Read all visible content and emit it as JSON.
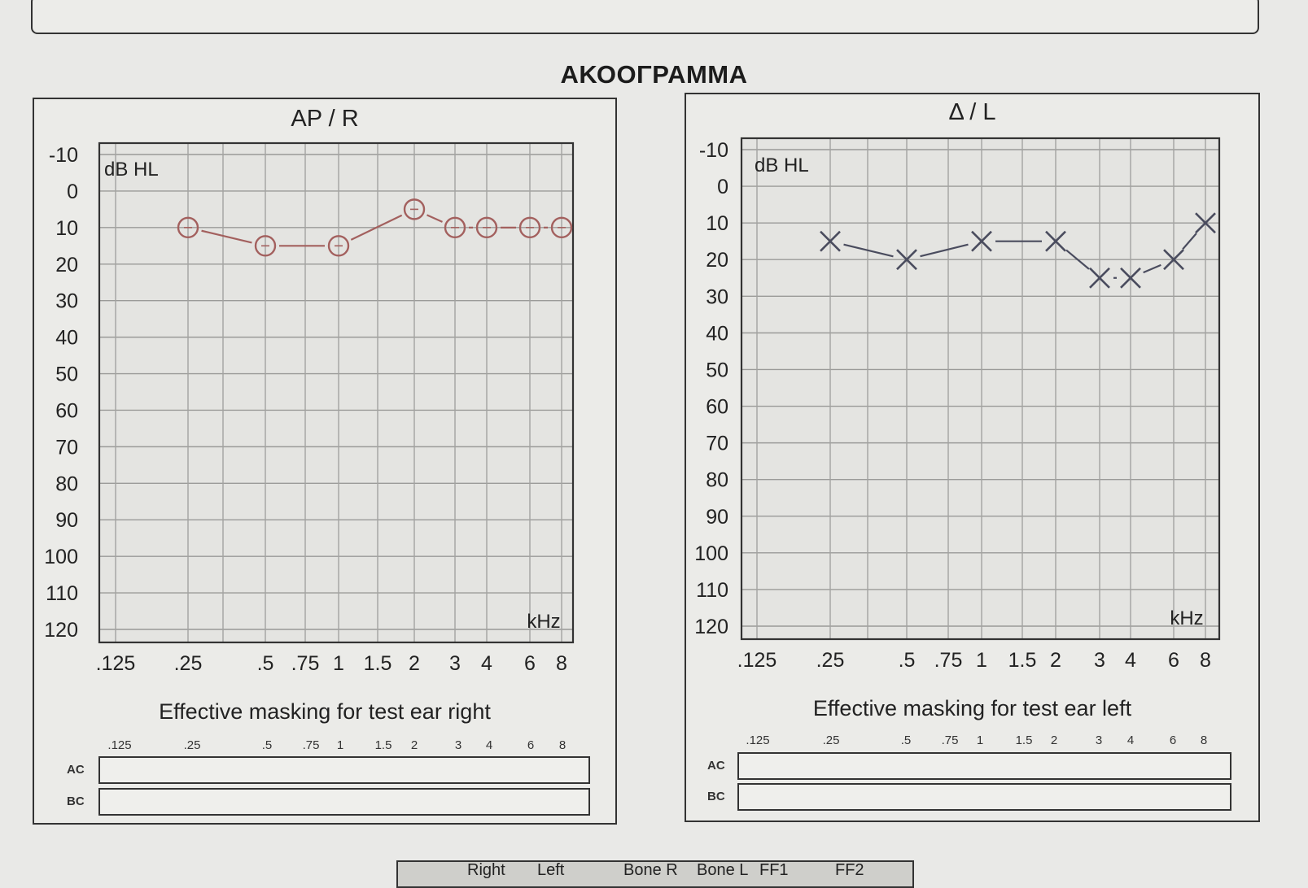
{
  "page_title": "ΑΚΟΟΓΡΑΜΜΑ",
  "chart_data": [
    {
      "type": "line",
      "title": "AP / R",
      "ylabel": "dB HL",
      "xlabel": "kHz",
      "x_ticks": [
        ".125",
        ".25",
        ".5",
        ".75",
        "1",
        "1.5",
        "2",
        "3",
        "4",
        "6",
        "8"
      ],
      "y_ticks": [
        "-10",
        "0",
        "10",
        "20",
        "30",
        "40",
        "50",
        "60",
        "70",
        "80",
        "90",
        "100",
        "110",
        "120"
      ],
      "ylim": [
        -10,
        120
      ],
      "y_inverted": true,
      "grid": true,
      "marker": "circle",
      "color": "#a3605e",
      "series": [
        {
          "x": [
            0.25,
            0.5,
            1,
            2,
            3,
            4,
            6,
            8
          ],
          "values": [
            10,
            15,
            15,
            5,
            10,
            10,
            10,
            10
          ]
        }
      ]
    },
    {
      "type": "line",
      "title": "Δ / L",
      "ylabel": "dB HL",
      "xlabel": "kHz",
      "x_ticks": [
        ".125",
        ".25",
        ".5",
        ".75",
        "1",
        "1.5",
        "2",
        "3",
        "4",
        "6",
        "8"
      ],
      "y_ticks": [
        "-10",
        "0",
        "10",
        "20",
        "30",
        "40",
        "50",
        "60",
        "70",
        "80",
        "90",
        "100",
        "110",
        "120"
      ],
      "ylim": [
        -10,
        120
      ],
      "y_inverted": true,
      "grid": true,
      "marker": "cross",
      "color": "#4a4c5e",
      "series": [
        {
          "x": [
            0.25,
            0.5,
            1,
            2,
            3,
            4,
            6,
            8
          ],
          "values": [
            15,
            20,
            15,
            15,
            25,
            25,
            20,
            10
          ]
        }
      ]
    }
  ],
  "masking": {
    "right_title": "Effective masking for test ear right",
    "left_title": "Effective masking for test ear left",
    "ticks": [
      ".125",
      ".25",
      ".5",
      ".75",
      "1",
      "1.5",
      "2",
      "3",
      "4",
      "6",
      "8"
    ],
    "rows": [
      "AC",
      "BC"
    ]
  },
  "legend": [
    "Right",
    "Left",
    "Bone R",
    "Bone L",
    "FF1",
    "FF2"
  ]
}
